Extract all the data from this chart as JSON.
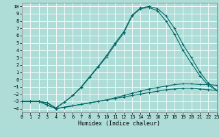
{
  "xlabel": "Humidex (Indice chaleur)",
  "xlim": [
    0,
    23
  ],
  "ylim": [
    -4.5,
    10.5
  ],
  "xticks": [
    0,
    1,
    2,
    3,
    4,
    5,
    6,
    7,
    8,
    9,
    10,
    11,
    12,
    13,
    14,
    15,
    16,
    17,
    18,
    19,
    20,
    21,
    22,
    23
  ],
  "yticks": [
    -4,
    -3,
    -2,
    -1,
    0,
    1,
    2,
    3,
    4,
    5,
    6,
    7,
    8,
    9,
    10
  ],
  "bg_color": "#aeddd8",
  "grid_color": "#ffffff",
  "line_color": "#006666",
  "series": [
    {
      "x": [
        0,
        1,
        2,
        3,
        4,
        5,
        6,
        7,
        8,
        9,
        10,
        11,
        12,
        13,
        14,
        15,
        16,
        17,
        18,
        19,
        20,
        21,
        22,
        23
      ],
      "y": [
        -3.0,
        -3.0,
        -3.0,
        -3.2,
        -3.9,
        -3.1,
        -2.2,
        -1.0,
        0.4,
        1.8,
        3.3,
        5.0,
        6.5,
        8.8,
        9.8,
        10.0,
        9.7,
        8.7,
        7.0,
        4.8,
        3.0,
        1.0,
        -0.5,
        -1.5
      ]
    },
    {
      "x": [
        0,
        1,
        2,
        3,
        4,
        5,
        6,
        7,
        8,
        9,
        10,
        11,
        12,
        13,
        14,
        15,
        16,
        17,
        18,
        19,
        20,
        21,
        22,
        23
      ],
      "y": [
        -3.0,
        -3.0,
        -3.0,
        -3.2,
        -3.9,
        -3.1,
        -2.2,
        -1.1,
        0.3,
        1.7,
        3.1,
        4.8,
        6.3,
        8.7,
        9.7,
        9.85,
        9.4,
        8.0,
        6.2,
        4.0,
        2.2,
        0.5,
        -0.8,
        -1.5
      ]
    },
    {
      "x": [
        0,
        1,
        2,
        3,
        4,
        5,
        6,
        7,
        8,
        9,
        10,
        11,
        12,
        13,
        14,
        15,
        16,
        17,
        18,
        19,
        20,
        21,
        22,
        23
      ],
      "y": [
        -3.0,
        -3.0,
        -3.0,
        -3.5,
        -4.0,
        -3.8,
        -3.6,
        -3.4,
        -3.2,
        -3.0,
        -2.8,
        -2.5,
        -2.2,
        -1.9,
        -1.6,
        -1.3,
        -1.1,
        -0.9,
        -0.7,
        -0.6,
        -0.6,
        -0.7,
        -0.7,
        -0.8
      ]
    },
    {
      "x": [
        0,
        1,
        2,
        3,
        4,
        5,
        6,
        7,
        8,
        9,
        10,
        11,
        12,
        13,
        14,
        15,
        16,
        17,
        18,
        19,
        20,
        21,
        22,
        23
      ],
      "y": [
        -3.0,
        -3.0,
        -3.0,
        -3.5,
        -4.0,
        -3.8,
        -3.6,
        -3.4,
        -3.2,
        -3.0,
        -2.8,
        -2.6,
        -2.4,
        -2.2,
        -2.0,
        -1.8,
        -1.6,
        -1.4,
        -1.3,
        -1.2,
        -1.2,
        -1.3,
        -1.4,
        -1.5
      ]
    }
  ]
}
